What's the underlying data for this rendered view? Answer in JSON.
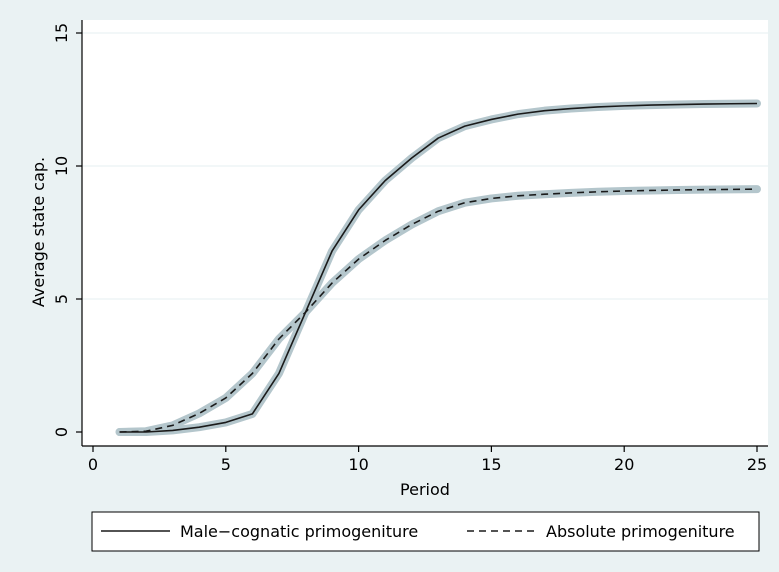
{
  "chart_data": {
    "type": "line",
    "xlabel": "Period",
    "ylabel": "Average state cap.",
    "xlim": [
      0,
      25
    ],
    "ylim": [
      0,
      15
    ],
    "xticks": [
      0,
      5,
      10,
      15,
      20,
      25
    ],
    "yticks": [
      0,
      5,
      10,
      15
    ],
    "grid": true,
    "legend_position": "bottom",
    "confidence_band_color": "#b4c6cc",
    "line_color": "#1a1a1a",
    "series": [
      {
        "name": "Male−cognatic primogeniture",
        "style": "solid",
        "x": [
          1,
          2,
          3,
          4,
          5,
          6,
          7,
          8,
          9,
          10,
          11,
          12,
          13,
          14,
          15,
          16,
          17,
          18,
          19,
          20,
          21,
          22,
          23,
          24,
          25
        ],
        "y": [
          0,
          0,
          0.06,
          0.18,
          0.36,
          0.68,
          2.2,
          4.5,
          6.8,
          8.35,
          9.45,
          10.3,
          11.05,
          11.5,
          11.75,
          11.95,
          12.08,
          12.16,
          12.22,
          12.26,
          12.29,
          12.31,
          12.33,
          12.34,
          12.35
        ]
      },
      {
        "name": "Absolute primogeniture",
        "style": "dashed",
        "x": [
          1,
          2,
          3,
          4,
          5,
          6,
          7,
          8,
          9,
          10,
          11,
          12,
          13,
          14,
          15,
          16,
          17,
          18,
          19,
          20,
          21,
          22,
          23,
          24,
          25
        ],
        "y": [
          0,
          0.03,
          0.25,
          0.7,
          1.28,
          2.2,
          3.5,
          4.5,
          5.6,
          6.5,
          7.2,
          7.8,
          8.3,
          8.62,
          8.78,
          8.88,
          8.94,
          8.99,
          9.03,
          9.06,
          9.08,
          9.1,
          9.11,
          9.12,
          9.13
        ]
      }
    ]
  }
}
